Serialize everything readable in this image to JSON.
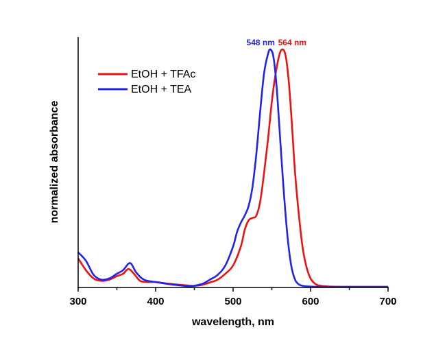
{
  "chart_data": {
    "type": "line",
    "title": "",
    "xlabel": "wavelength, nm",
    "ylabel": "normalized absorbance",
    "xlim": [
      300,
      700
    ],
    "ylim": [
      0,
      1.05
    ],
    "x_ticks": [
      300,
      400,
      500,
      600,
      700
    ],
    "x_minor_ticks": [
      350,
      450,
      550,
      650
    ],
    "y_ticks_shown": false,
    "grid": false,
    "legend": {
      "position": "top-left"
    },
    "series": [
      {
        "name": "EtOH + TFAc",
        "color": "#ee1111",
        "x": [
          300,
          310,
          320,
          330,
          340,
          350,
          358,
          365,
          372,
          380,
          390,
          400,
          420,
          440,
          450,
          460,
          470,
          480,
          490,
          500,
          510,
          515,
          520,
          525,
          530,
          535,
          540,
          545,
          550,
          555,
          560,
          564,
          568,
          572,
          576,
          580,
          585,
          590,
          595,
          600,
          605,
          610,
          620,
          640,
          700
        ],
        "y": [
          0.12,
          0.07,
          0.035,
          0.025,
          0.03,
          0.045,
          0.055,
          0.075,
          0.055,
          0.025,
          0.02,
          0.02,
          0.012,
          0.006,
          0.004,
          0.008,
          0.018,
          0.03,
          0.055,
          0.09,
          0.17,
          0.24,
          0.28,
          0.29,
          0.3,
          0.36,
          0.48,
          0.62,
          0.78,
          0.9,
          0.98,
          1.0,
          0.97,
          0.86,
          0.68,
          0.48,
          0.3,
          0.16,
          0.08,
          0.035,
          0.015,
          0.006,
          0.002,
          0.0,
          0.0
        ]
      },
      {
        "name": "EtOH + TEA",
        "color": "#2222ee",
        "x": [
          300,
          310,
          320,
          330,
          340,
          350,
          358,
          367,
          375,
          385,
          400,
          420,
          440,
          445,
          460,
          470,
          480,
          490,
          500,
          505,
          510,
          515,
          520,
          525,
          530,
          535,
          540,
          545,
          548,
          552,
          556,
          560,
          565,
          570,
          575,
          580,
          585,
          590,
          600,
          620,
          700
        ],
        "y": [
          0.145,
          0.11,
          0.05,
          0.03,
          0.035,
          0.055,
          0.07,
          0.1,
          0.06,
          0.03,
          0.02,
          0.01,
          0.003,
          0.002,
          0.012,
          0.03,
          0.05,
          0.09,
          0.17,
          0.23,
          0.27,
          0.3,
          0.34,
          0.42,
          0.56,
          0.74,
          0.9,
          0.98,
          1.0,
          0.97,
          0.85,
          0.66,
          0.42,
          0.22,
          0.09,
          0.03,
          0.01,
          0.004,
          0.001,
          0.0,
          0.0
        ]
      }
    ],
    "annotations": [
      {
        "text": "548 nm",
        "x": 548,
        "series": "EtOH + TEA",
        "color": "#2222ee"
      },
      {
        "text": "564 nm",
        "x": 564,
        "series": "EtOH + TFAc",
        "color": "#ee1111"
      }
    ]
  }
}
